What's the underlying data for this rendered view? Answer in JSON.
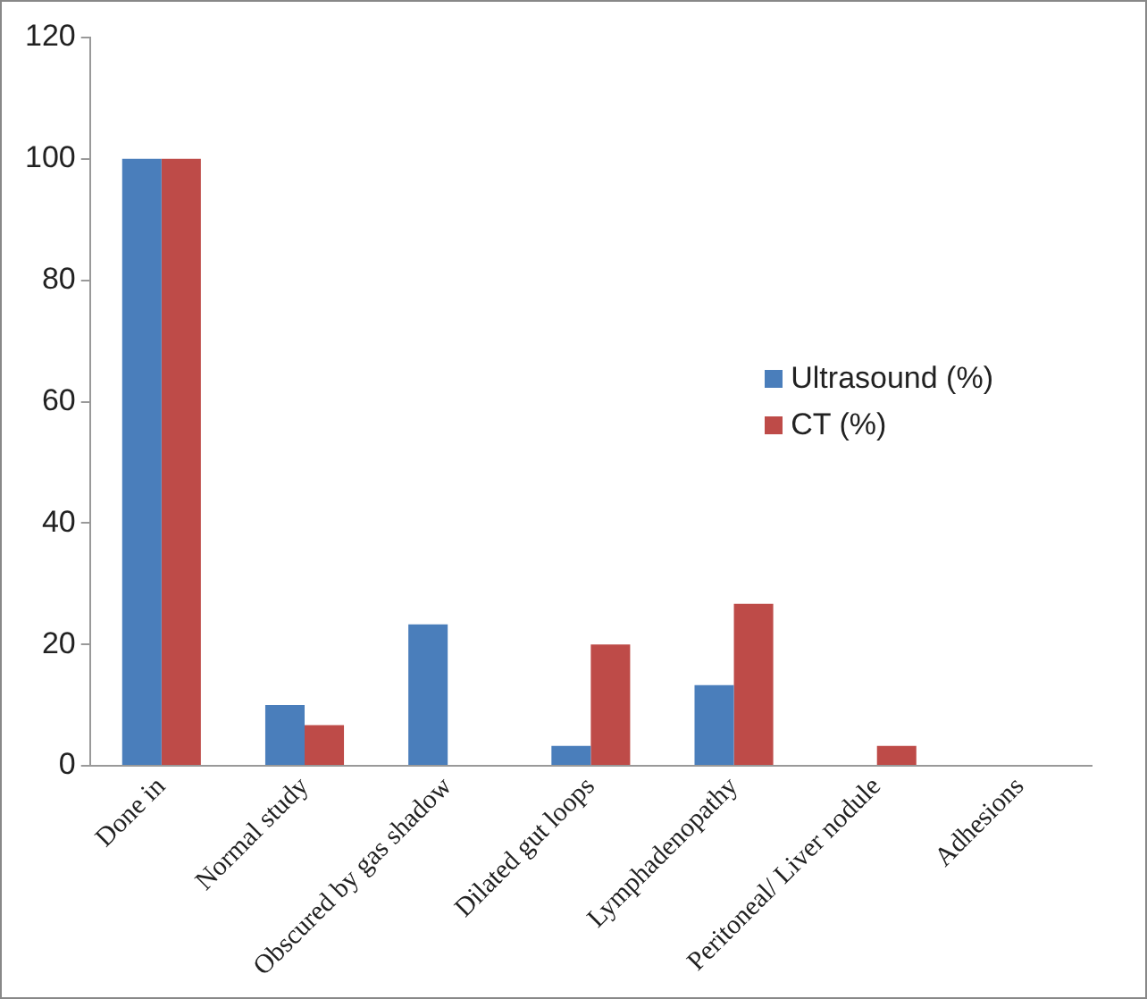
{
  "chart_data": {
    "type": "bar",
    "categories": [
      "Done in",
      "Normal study",
      "Obscured by gas shadow",
      "Dilated gut loops",
      "Lymphadenopathy",
      "Peritoneal/ Liver nodule",
      "Adhesions"
    ],
    "series": [
      {
        "name": "Ultrasound (%)",
        "color": "#4a7ebb",
        "values": [
          100,
          10,
          23.3,
          3.3,
          13.3,
          0,
          0
        ]
      },
      {
        "name": "CT (%)",
        "color": "#be4b48",
        "values": [
          100,
          6.7,
          0,
          20,
          26.7,
          3.3,
          0
        ]
      }
    ],
    "ylim": [
      0,
      120
    ],
    "yticks": [
      0,
      20,
      40,
      60,
      80,
      100,
      120
    ],
    "grid": false,
    "legend": "right"
  }
}
